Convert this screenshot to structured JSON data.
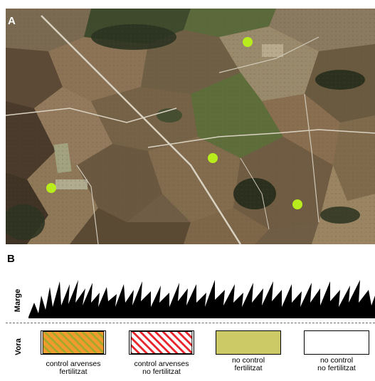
{
  "panel_a": {
    "letter": "A",
    "markers": [
      {
        "name": "site-1",
        "color": "#b8ec1c"
      },
      {
        "name": "site-2",
        "color": "#b8ec1c"
      },
      {
        "name": "site-3",
        "color": "#b8ec1c"
      },
      {
        "name": "site-4",
        "color": "#b8ec1c"
      }
    ]
  },
  "panel_b": {
    "letter": "B",
    "row_marge": "Marge",
    "row_vora": "Vora",
    "legend": [
      {
        "line1": "control arvenses",
        "line2": "fertilitzat",
        "pattern": "orange-hatch"
      },
      {
        "line1": "control arvenses",
        "line2": "no fertilitzat",
        "pattern": "red-hatch"
      },
      {
        "line1": "no control",
        "line2": "fertilitzat",
        "pattern": "olive-fill"
      },
      {
        "line1": "no control",
        "line2": "no fertilitzat",
        "pattern": "white-fill"
      }
    ]
  },
  "colors": {
    "marker": "#b8ec1c",
    "orange": "#f29a2e",
    "olive": "#a6a82a",
    "red": "#e8252b",
    "olive_fill": "#cbca67",
    "grass": "#000000"
  }
}
